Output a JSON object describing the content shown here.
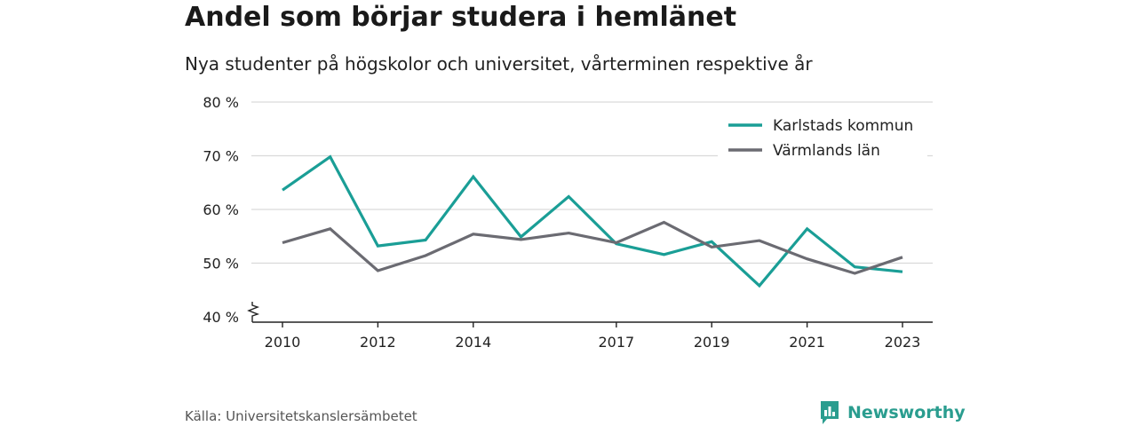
{
  "title": "Andel som börjar studera i hemlänet",
  "subtitle": "Nya studenter på högskolor och universitet, vårterminen respektive år",
  "source": "Källa: Universitetskanslersämbetet",
  "brand": "Newsworthy",
  "chart_data": {
    "type": "line",
    "x": [
      2010,
      2011,
      2012,
      2013,
      2014,
      2015,
      2016,
      2017,
      2018,
      2019,
      2020,
      2021,
      2022,
      2023
    ],
    "xticks": [
      2010,
      2012,
      2014,
      2017,
      2019,
      2021,
      2023
    ],
    "ylim": [
      40,
      80
    ],
    "yticks": [
      40,
      50,
      60,
      70,
      80
    ],
    "ytick_labels": [
      "40 %",
      "50 %",
      "60 %",
      "70 %",
      "80 %"
    ],
    "grid": true,
    "legend_position": "top-right",
    "series": [
      {
        "name": "Karlstads kommun",
        "color": "#1a9e96",
        "values": [
          63.6,
          69.8,
          53.2,
          54.3,
          66.1,
          54.9,
          62.4,
          53.6,
          51.6,
          54.0,
          45.8,
          56.4,
          49.3,
          48.4
        ]
      },
      {
        "name": "Värmlands län",
        "color": "#6b6b72",
        "values": [
          53.8,
          56.4,
          48.6,
          51.4,
          55.4,
          54.4,
          55.6,
          53.8,
          57.6,
          53.0,
          54.2,
          50.8,
          48.1,
          51.1
        ]
      }
    ]
  }
}
